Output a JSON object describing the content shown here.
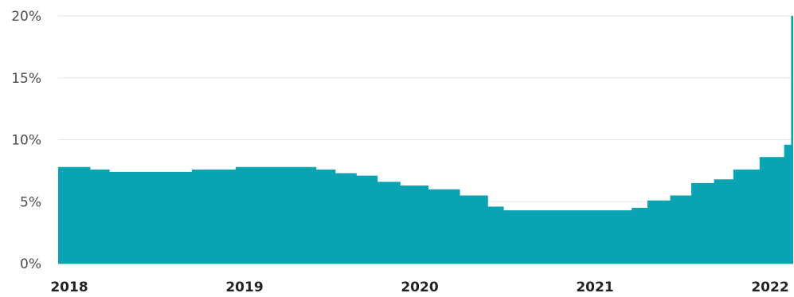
{
  "chart_data": {
    "type": "area",
    "step": true,
    "title": "",
    "xlabel": "",
    "ylabel": "",
    "color": "#0aa3b3",
    "grid": true,
    "legend": "none",
    "xlim": [
      2018.0,
      2022.15
    ],
    "ylim": [
      0,
      20
    ],
    "y_ticks": [
      0,
      5,
      10,
      15,
      20
    ],
    "y_tick_labels": [
      "0%",
      "5%",
      "10%",
      "15%",
      "20%"
    ],
    "x_ticks": [
      2018,
      2019,
      2020,
      2021,
      2022
    ],
    "x_tick_labels": [
      "2018",
      "2019",
      "2020",
      "2021",
      "2022"
    ],
    "series": [
      {
        "points": [
          {
            "x": 2018.0,
            "y": 7.8
          },
          {
            "x": 2018.12,
            "y": 7.6
          },
          {
            "x": 2018.23,
            "y": 7.4
          },
          {
            "x": 2018.7,
            "y": 7.6
          },
          {
            "x": 2018.95,
            "y": 7.8
          },
          {
            "x": 2019.41,
            "y": 7.6
          },
          {
            "x": 2019.52,
            "y": 7.3
          },
          {
            "x": 2019.64,
            "y": 7.1
          },
          {
            "x": 2019.76,
            "y": 6.6
          },
          {
            "x": 2019.89,
            "y": 6.3
          },
          {
            "x": 2020.05,
            "y": 6.0
          },
          {
            "x": 2020.23,
            "y": 5.5
          },
          {
            "x": 2020.39,
            "y": 4.6
          },
          {
            "x": 2020.48,
            "y": 4.3
          },
          {
            "x": 2021.21,
            "y": 4.5
          },
          {
            "x": 2021.3,
            "y": 5.1
          },
          {
            "x": 2021.43,
            "y": 5.5
          },
          {
            "x": 2021.55,
            "y": 6.5
          },
          {
            "x": 2021.68,
            "y": 6.8
          },
          {
            "x": 2021.79,
            "y": 7.6
          },
          {
            "x": 2021.94,
            "y": 8.6
          },
          {
            "x": 2022.08,
            "y": 9.6
          },
          {
            "x": 2022.12,
            "y": 20.0
          }
        ]
      }
    ]
  }
}
